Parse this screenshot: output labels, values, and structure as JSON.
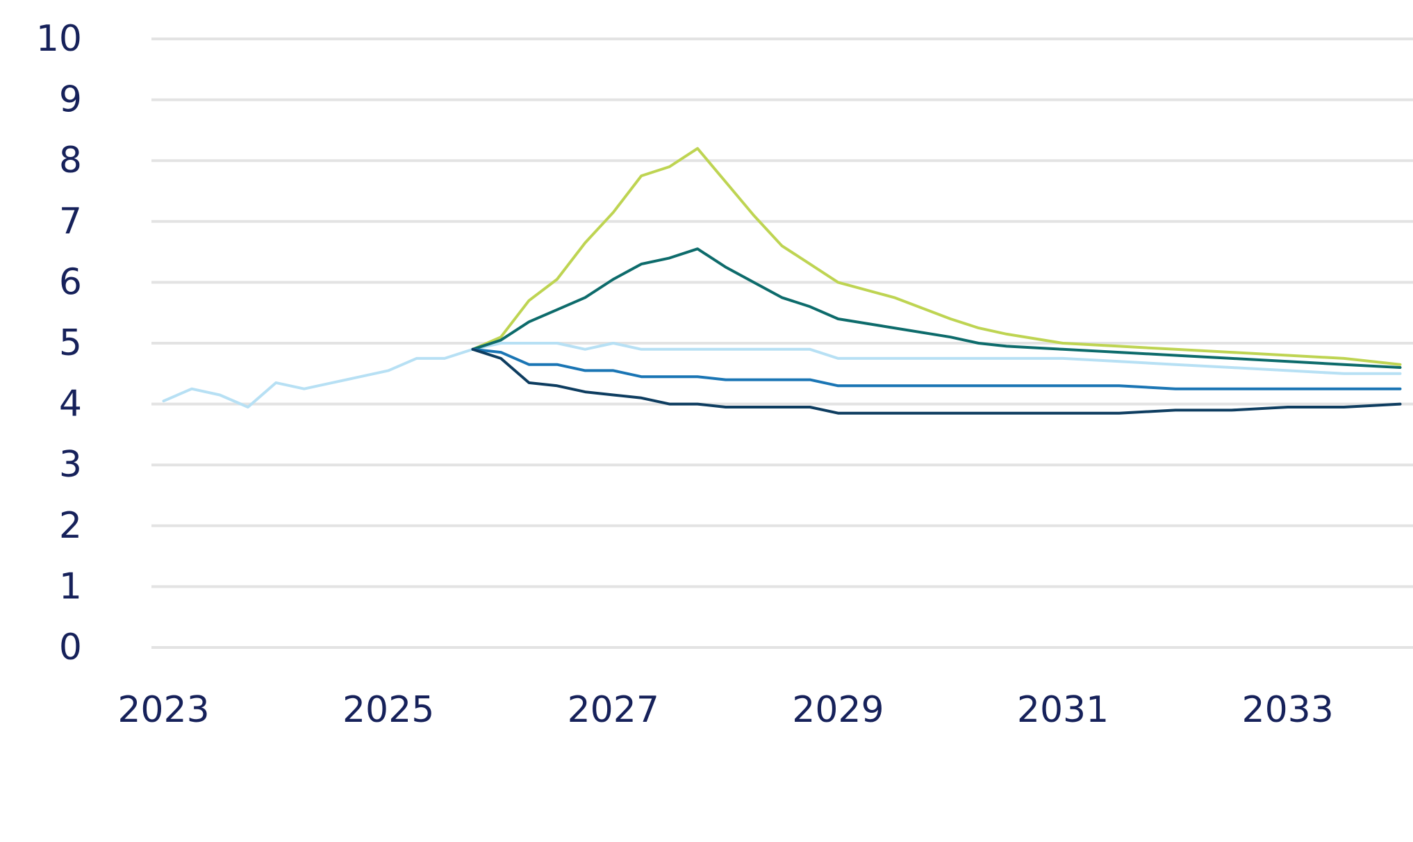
{
  "chart_data": {
    "type": "line",
    "title": "",
    "xlabel": "",
    "ylabel": "",
    "ylim": [
      0,
      10
    ],
    "xlim": [
      2023.0,
      2034.0
    ],
    "yticks": [
      "0",
      "1",
      "2",
      "3",
      "4",
      "5",
      "6",
      "7",
      "8",
      "9",
      "10"
    ],
    "xticks": [
      "2023",
      "2025",
      "2027",
      "2029",
      "2031",
      "2033"
    ],
    "grid": true,
    "legend": "none",
    "series": [
      {
        "color": "#b7e0f4",
        "x": [
          2023.0,
          2023.25,
          2023.5,
          2023.75,
          2024.0,
          2024.25,
          2024.5,
          2024.75,
          2025.0,
          2025.25,
          2025.5,
          2025.75,
          2026.0,
          2026.25,
          2026.5,
          2026.75,
          2027.0,
          2027.25,
          2027.5,
          2027.75,
          2028.0,
          2028.25,
          2028.5,
          2028.75,
          2029.0,
          2029.5,
          2030.0,
          2030.5,
          2031.0,
          2031.5,
          2032.0,
          2032.5,
          2033.0,
          2033.5,
          2034.0
        ],
        "y": [
          4.05,
          4.25,
          4.15,
          3.95,
          4.35,
          4.25,
          4.35,
          4.45,
          4.55,
          4.75,
          4.75,
          4.9,
          5.0,
          5.0,
          5.0,
          4.9,
          5.0,
          4.9,
          4.9,
          4.9,
          4.9,
          4.9,
          4.9,
          4.9,
          4.75,
          4.75,
          4.75,
          4.75,
          4.75,
          4.7,
          4.65,
          4.6,
          4.55,
          4.5,
          4.5
        ]
      },
      {
        "color": "#bed452",
        "x": [
          2025.75,
          2026.0,
          2026.25,
          2026.5,
          2026.75,
          2027.0,
          2027.25,
          2027.5,
          2027.75,
          2028.0,
          2028.25,
          2028.5,
          2028.75,
          2029.0,
          2029.5,
          2030.0,
          2030.25,
          2030.5,
          2031.0,
          2031.5,
          2032.0,
          2032.5,
          2033.0,
          2033.5,
          2034.0
        ],
        "y": [
          4.9,
          5.1,
          5.7,
          6.05,
          6.65,
          7.15,
          7.75,
          7.9,
          8.2,
          7.65,
          7.1,
          6.6,
          6.3,
          6.0,
          5.75,
          5.4,
          5.25,
          5.15,
          5.0,
          4.95,
          4.9,
          4.85,
          4.8,
          4.75,
          4.65
        ]
      },
      {
        "color": "#0d6b6b",
        "x": [
          2025.75,
          2026.0,
          2026.25,
          2026.5,
          2026.75,
          2027.0,
          2027.25,
          2027.5,
          2027.75,
          2028.0,
          2028.25,
          2028.5,
          2028.75,
          2029.0,
          2029.5,
          2030.0,
          2030.25,
          2030.5,
          2031.0,
          2031.5,
          2032.0,
          2032.5,
          2033.0,
          2033.5,
          2034.0
        ],
        "y": [
          4.9,
          5.05,
          5.35,
          5.55,
          5.75,
          6.05,
          6.3,
          6.4,
          6.55,
          6.25,
          6.0,
          5.75,
          5.6,
          5.4,
          5.25,
          5.1,
          5.0,
          4.95,
          4.9,
          4.85,
          4.8,
          4.75,
          4.7,
          4.65,
          4.6
        ]
      },
      {
        "color": "#1a75b4",
        "x": [
          2025.75,
          2026.0,
          2026.25,
          2026.5,
          2026.75,
          2027.0,
          2027.25,
          2027.5,
          2027.75,
          2028.0,
          2028.25,
          2028.5,
          2028.75,
          2029.0,
          2029.5,
          2030.0,
          2030.5,
          2031.0,
          2031.5,
          2032.0,
          2032.5,
          2033.0,
          2033.5,
          2034.0
        ],
        "y": [
          4.9,
          4.85,
          4.65,
          4.65,
          4.55,
          4.55,
          4.45,
          4.45,
          4.45,
          4.4,
          4.4,
          4.4,
          4.4,
          4.3,
          4.3,
          4.3,
          4.3,
          4.3,
          4.3,
          4.25,
          4.25,
          4.25,
          4.25,
          4.25
        ]
      },
      {
        "color": "#0e3d60",
        "x": [
          2025.75,
          2026.0,
          2026.25,
          2026.5,
          2026.75,
          2027.0,
          2027.25,
          2027.5,
          2027.75,
          2028.0,
          2028.25,
          2028.5,
          2028.75,
          2029.0,
          2029.5,
          2030.0,
          2030.5,
          2031.0,
          2031.5,
          2032.0,
          2032.5,
          2033.0,
          2033.5,
          2034.0
        ],
        "y": [
          4.9,
          4.75,
          4.35,
          4.3,
          4.2,
          4.15,
          4.1,
          4.0,
          4.0,
          3.95,
          3.95,
          3.95,
          3.95,
          3.85,
          3.85,
          3.85,
          3.85,
          3.85,
          3.85,
          3.9,
          3.9,
          3.95,
          3.95,
          4.0
        ]
      }
    ]
  }
}
